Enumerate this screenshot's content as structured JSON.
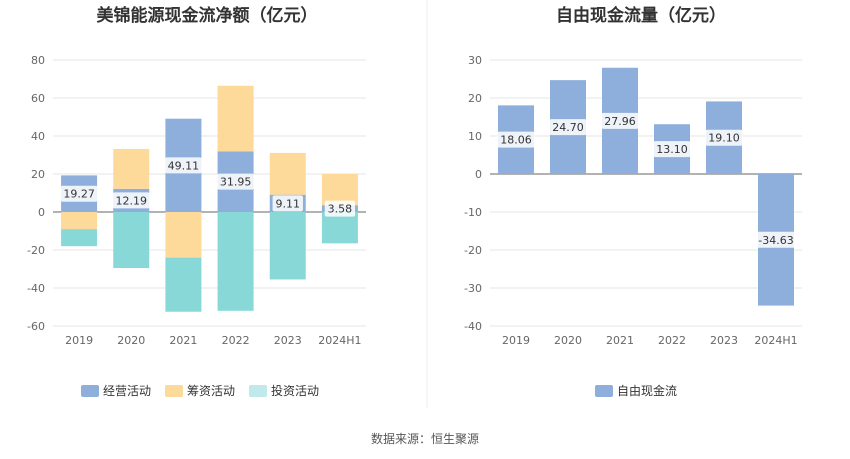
{
  "source_text": "数据来源：恒生聚源",
  "chart_data": [
    {
      "type": "bar",
      "stacked": true,
      "title": "美锦能源现金流净额（亿元）",
      "categories": [
        "2019",
        "2020",
        "2021",
        "2022",
        "2023",
        "2024H1"
      ],
      "ylim": [
        -60,
        80
      ],
      "yticks": [
        -60,
        -40,
        -20,
        0,
        20,
        40,
        60,
        80
      ],
      "grid": true,
      "legend": "bottom",
      "series": [
        {
          "name": "经营活动",
          "color": "#8eaedb",
          "values": [
            19.27,
            12.19,
            49.11,
            31.95,
            9.11,
            3.58
          ],
          "labels": [
            "19.27",
            "12.19",
            "49.11",
            "31.95",
            "9.11",
            "3.58"
          ]
        },
        {
          "name": "筹资活动",
          "color": "#fdd99a",
          "values": [
            -9.0,
            21.0,
            -24.0,
            34.5,
            22.0,
            16.5
          ]
        },
        {
          "name": "投资活动",
          "color": "#88d8d8",
          "legend_color": "#bfe9ea",
          "values": [
            -9.0,
            -29.5,
            -28.5,
            -52.0,
            -35.5,
            -16.5
          ]
        }
      ]
    },
    {
      "type": "bar",
      "title": "自由现金流量（亿元）",
      "categories": [
        "2019",
        "2020",
        "2021",
        "2022",
        "2023",
        "2024H1"
      ],
      "ylim": [
        -40,
        30
      ],
      "yticks": [
        -40,
        -30,
        -20,
        -10,
        0,
        10,
        20,
        30
      ],
      "grid": true,
      "legend": "bottom",
      "series": [
        {
          "name": "自由现金流",
          "color": "#8eaedb",
          "values": [
            18.06,
            24.7,
            27.96,
            13.1,
            19.1,
            -34.63
          ],
          "labels": [
            "18.06",
            "24.70",
            "27.96",
            "13.10",
            "19.10",
            "-34.63"
          ]
        }
      ]
    }
  ]
}
